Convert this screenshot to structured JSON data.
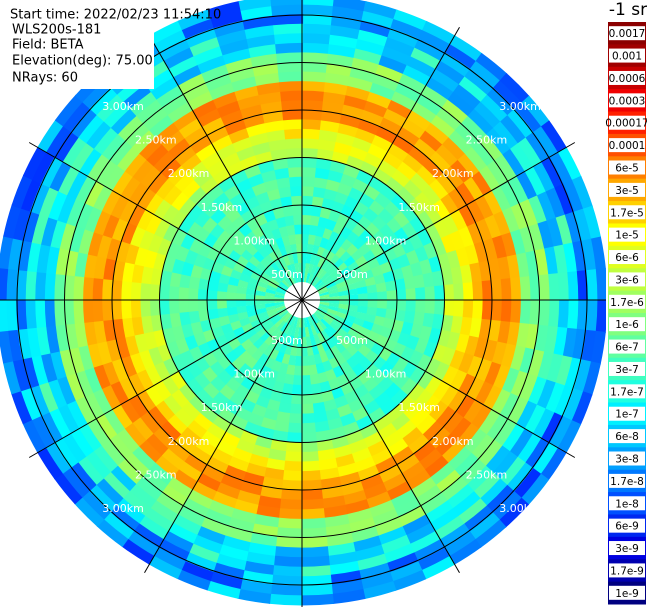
{
  "header": {
    "start_time": "Start time: 2022/02/23 11:54:10",
    "instrument": "WLS200s-181",
    "field": "Field: BETA",
    "elevation": "Elevation(deg): 75.00",
    "nrays": "NRays: 60"
  },
  "range_labels": [
    "500m",
    "1.00km",
    "1.50km",
    "2.00km",
    "2.50km",
    "3.00km"
  ],
  "colorbar": {
    "title": "-1 sr",
    "labels": [
      "0.0017",
      "0.001",
      "0.0006",
      "0.0003",
      "0.00017",
      "0.0001",
      "6e-5",
      "3e-5",
      "1.7e-5",
      "1e-5",
      "6e-6",
      "3e-6",
      "1.7e-6",
      "1e-6",
      "6e-7",
      "3e-7",
      "1.7e-7",
      "1e-7",
      "6e-8",
      "3e-8",
      "1.7e-8",
      "1e-8",
      "6e-9",
      "3e-9",
      "1.7e-9",
      "1e-9"
    ],
    "colors": [
      "#8b0000",
      "#a00000",
      "#c80000",
      "#f00000",
      "#ff2000",
      "#ff5000",
      "#ff7f00",
      "#ffa800",
      "#ffd000",
      "#ffff00",
      "#e0ff20",
      "#c0ff40",
      "#a0ff60",
      "#80ff80",
      "#60ffa0",
      "#40ffc0",
      "#20ffe0",
      "#00f0ff",
      "#00c8ff",
      "#00a0ff",
      "#0078ff",
      "#0050ff",
      "#0028f0",
      "#0000e0",
      "#0000b0",
      "#000080"
    ]
  }
}
